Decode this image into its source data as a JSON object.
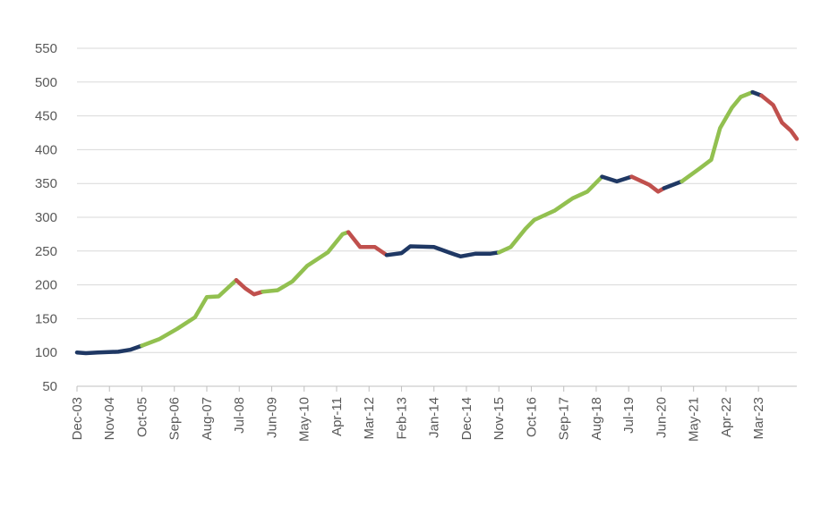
{
  "chart_data": {
    "type": "line",
    "title": "",
    "xlabel": "",
    "ylabel": "",
    "ylim": [
      50,
      550
    ],
    "y_ticks": [
      50,
      100,
      150,
      200,
      250,
      300,
      350,
      400,
      450,
      500,
      550
    ],
    "x_range": [
      "2003-12",
      "2024-04"
    ],
    "x_tick_labels": [
      "Dec-03",
      "Nov-04",
      "Oct-05",
      "Sep-06",
      "Aug-07",
      "Jul-08",
      "Jun-09",
      "May-10",
      "Apr-11",
      "Mar-12",
      "Feb-13",
      "Jan-14",
      "Dec-14",
      "Nov-15",
      "Oct-16",
      "Sep-17",
      "Aug-18",
      "Jul-19",
      "Jun-20",
      "May-21",
      "Apr-22",
      "Mar-23"
    ],
    "grid": "horizontal",
    "legend": "none",
    "colors": {
      "rising": "#92c050",
      "falling": "#c0504d",
      "flat": "#1f3864",
      "grid": "#d9d9d9",
      "axis": "#bfbfbf"
    },
    "segments": [
      {
        "trend": "flat",
        "points": [
          [
            "2003-12",
            100
          ],
          [
            "2004-03",
            99
          ],
          [
            "2004-07",
            100
          ],
          [
            "2005-02",
            101
          ],
          [
            "2005-06",
            104
          ],
          [
            "2005-10",
            110
          ]
        ]
      },
      {
        "trend": "rising",
        "points": [
          [
            "2005-10",
            110
          ],
          [
            "2006-04",
            120
          ],
          [
            "2006-10",
            135
          ],
          [
            "2007-04",
            152
          ],
          [
            "2007-08",
            182
          ],
          [
            "2007-12",
            183
          ],
          [
            "2008-03",
            195
          ],
          [
            "2008-06",
            207
          ]
        ]
      },
      {
        "trend": "falling",
        "points": [
          [
            "2008-06",
            207
          ],
          [
            "2008-09",
            195
          ],
          [
            "2008-12",
            186
          ],
          [
            "2009-03",
            190
          ]
        ]
      },
      {
        "trend": "rising",
        "points": [
          [
            "2009-03",
            190
          ],
          [
            "2009-08",
            192
          ],
          [
            "2010-01",
            205
          ],
          [
            "2010-06",
            228
          ],
          [
            "2011-01",
            248
          ],
          [
            "2011-06",
            275
          ],
          [
            "2011-08",
            278
          ]
        ]
      },
      {
        "trend": "falling",
        "points": [
          [
            "2011-08",
            278
          ],
          [
            "2011-12",
            256
          ],
          [
            "2012-05",
            256
          ],
          [
            "2012-09",
            244
          ]
        ]
      },
      {
        "trend": "flat",
        "points": [
          [
            "2012-09",
            244
          ],
          [
            "2013-02",
            247
          ],
          [
            "2013-05",
            257
          ],
          [
            "2014-01",
            256
          ],
          [
            "2014-06",
            248
          ],
          [
            "2014-10",
            242
          ],
          [
            "2015-03",
            246
          ],
          [
            "2015-08",
            246
          ],
          [
            "2015-11",
            248
          ]
        ]
      },
      {
        "trend": "rising",
        "points": [
          [
            "2015-11",
            248
          ],
          [
            "2016-03",
            256
          ],
          [
            "2016-08",
            283
          ],
          [
            "2016-11",
            296
          ],
          [
            "2017-06",
            310
          ],
          [
            "2017-12",
            328
          ],
          [
            "2018-05",
            338
          ],
          [
            "2018-10",
            360
          ]
        ]
      },
      {
        "trend": "flat",
        "points": [
          [
            "2018-10",
            360
          ],
          [
            "2019-03",
            353
          ],
          [
            "2019-08",
            360
          ]
        ]
      },
      {
        "trend": "falling",
        "points": [
          [
            "2019-08",
            360
          ],
          [
            "2020-02",
            348
          ],
          [
            "2020-05",
            338
          ],
          [
            "2020-07",
            343
          ]
        ]
      },
      {
        "trend": "flat",
        "points": [
          [
            "2020-07",
            343
          ],
          [
            "2021-01",
            353
          ]
        ]
      },
      {
        "trend": "rising",
        "points": [
          [
            "2021-01",
            353
          ],
          [
            "2021-07",
            372
          ],
          [
            "2021-11",
            385
          ],
          [
            "2022-02",
            432
          ],
          [
            "2022-06",
            462
          ],
          [
            "2022-09",
            478
          ],
          [
            "2023-01",
            485
          ]
        ]
      },
      {
        "trend": "flat",
        "points": [
          [
            "2023-01",
            485
          ],
          [
            "2023-04",
            480
          ]
        ]
      },
      {
        "trend": "falling",
        "points": [
          [
            "2023-04",
            480
          ],
          [
            "2023-08",
            466
          ],
          [
            "2023-11",
            440
          ],
          [
            "2024-02",
            428
          ],
          [
            "2024-04",
            416
          ]
        ]
      }
    ]
  }
}
